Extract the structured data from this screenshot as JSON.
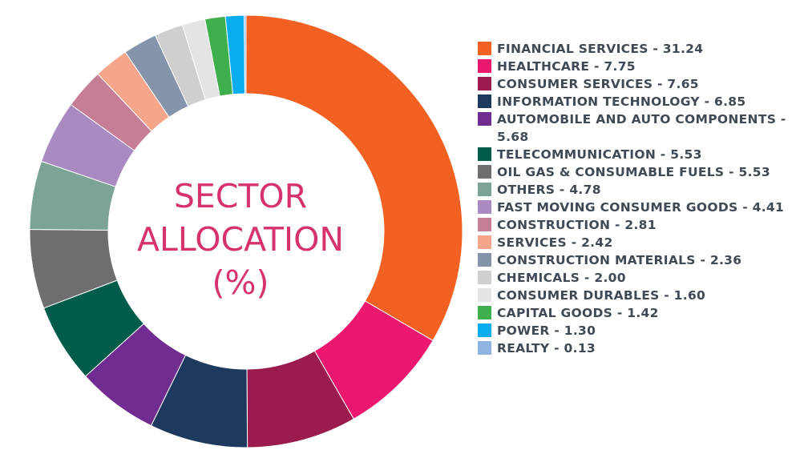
{
  "center_title": {
    "line1": "SECTOR",
    "line2": "ALLOCATION",
    "line3": "(%)"
  },
  "chart_data": {
    "type": "pie",
    "donut": true,
    "title": "SECTOR ALLOCATION (%)",
    "legend_position": "right",
    "slices": [
      {
        "label": "FINANCIAL SERVICES - 31.24",
        "name": "FINANCIAL SERVICES",
        "value": 31.24,
        "color": "#f26122"
      },
      {
        "label": "HEALTHCARE - 7.75",
        "name": "HEALTHCARE",
        "value": 7.75,
        "color": "#ec1870"
      },
      {
        "label": "CONSUMER SERVICES - 7.65",
        "name": "CONSUMER SERVICES",
        "value": 7.65,
        "color": "#9b1b4f"
      },
      {
        "label": "INFORMATION TECHNOLOGY - 6.85",
        "name": "INFORMATION TECHNOLOGY",
        "value": 6.85,
        "color": "#1d3a5e"
      },
      {
        "label": "AUTOMOBILE AND AUTO COMPONENTS - 5.68",
        "name": "AUTOMOBILE AND AUTO COMPONENTS",
        "value": 5.68,
        "color": "#702c90"
      },
      {
        "label": "TELECOMMUNICATION - 5.53",
        "name": "TELECOMMUNICATION",
        "value": 5.53,
        "color": "#015c4b"
      },
      {
        "label": "OIL GAS & CONSUMABLE FUELS - 5.53",
        "name": "OIL GAS & CONSUMABLE FUELS",
        "value": 5.53,
        "color": "#6e6e70"
      },
      {
        "label": "OTHERS - 4.78",
        "name": "OTHERS",
        "value": 4.78,
        "color": "#7ba396"
      },
      {
        "label": "FAST MOVING CONSUMER GOODS - 4.41",
        "name": "FAST MOVING CONSUMER GOODS",
        "value": 4.41,
        "color": "#a98bc2"
      },
      {
        "label": "CONSTRUCTION - 2.81",
        "name": "CONSTRUCTION",
        "value": 2.81,
        "color": "#c57e95"
      },
      {
        "label": "SERVICES - 2.42",
        "name": "SERVICES",
        "value": 2.42,
        "color": "#f5a58a"
      },
      {
        "label": "CONSTRUCTION MATERIALS - 2.36",
        "name": "CONSTRUCTION MATERIALS",
        "value": 2.36,
        "color": "#8593ab"
      },
      {
        "label": "CHEMICALS - 2.00",
        "name": "CHEMICALS",
        "value": 2.0,
        "color": "#cfcfcf"
      },
      {
        "label": "CONSUMER DURABLES - 1.60",
        "name": "CONSUMER DURABLES",
        "value": 1.6,
        "color": "#e4e4e4"
      },
      {
        "label": "CAPITAL GOODS - 1.42",
        "name": "CAPITAL GOODS",
        "value": 1.42,
        "color": "#3fae4c"
      },
      {
        "label": "POWER - 1.30",
        "name": "POWER",
        "value": 1.3,
        "color": "#0aaded"
      },
      {
        "label": "REALTY - 0.13",
        "name": "REALTY",
        "value": 0.13,
        "color": "#8fb3e3"
      }
    ]
  }
}
